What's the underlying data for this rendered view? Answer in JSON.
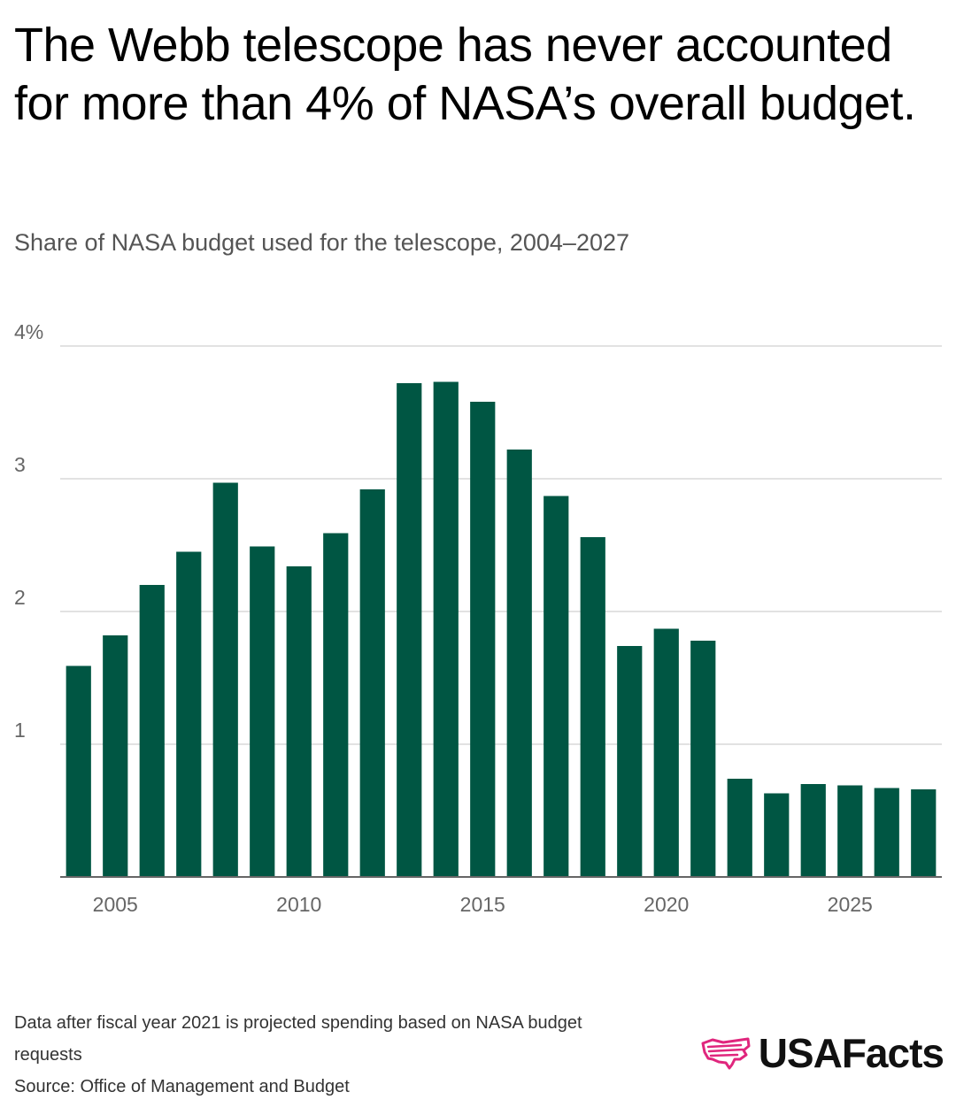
{
  "header": {
    "title": "The Webb telescope has never accounted for more than 4% of NASA’s overall budget.",
    "subtitle": "Share of NASA budget used for the telescope, 2004–2027"
  },
  "chart_data": {
    "type": "bar",
    "title": "The Webb telescope has never accounted for more than 4% of NASA’s overall budget.",
    "subtitle": "Share of NASA budget used for the telescope, 2004–2027",
    "xlabel": "",
    "ylabel": "",
    "unit": "%",
    "categories": [
      2004,
      2005,
      2006,
      2007,
      2008,
      2009,
      2010,
      2011,
      2012,
      2013,
      2014,
      2015,
      2016,
      2017,
      2018,
      2019,
      2020,
      2021,
      2022,
      2023,
      2024,
      2025,
      2026,
      2027
    ],
    "values": [
      1.59,
      1.82,
      2.2,
      2.45,
      2.97,
      2.49,
      2.34,
      2.59,
      2.92,
      3.72,
      3.73,
      3.58,
      3.22,
      2.87,
      2.56,
      1.74,
      1.87,
      1.78,
      0.74,
      0.63,
      0.7,
      0.69,
      0.67,
      0.66
    ],
    "ylim": [
      0,
      4
    ],
    "yticks": [
      1,
      2,
      3,
      4
    ],
    "ytick_labels": [
      "1",
      "2",
      "3",
      "4%"
    ],
    "xticks": [
      2005,
      2010,
      2015,
      2020,
      2025
    ],
    "xtick_labels": [
      "2005",
      "2010",
      "2015",
      "2020",
      "2025"
    ],
    "grid": true,
    "bar_color": "#005643"
  },
  "footer": {
    "note": "Data after fiscal year 2021 is projected spending based on NASA budget requests",
    "source": "Source: Office of Management and Budget"
  },
  "logo": {
    "text": "USAFacts",
    "icon": "us-map-icon",
    "icon_color": "#E0267D"
  }
}
